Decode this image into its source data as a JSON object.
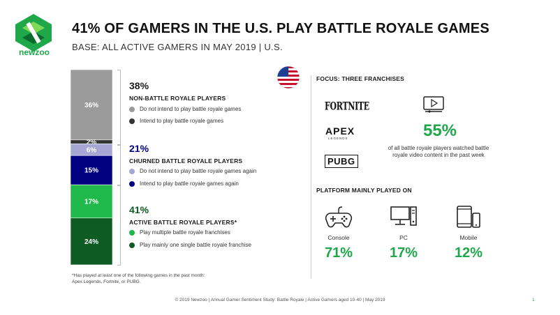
{
  "brand": {
    "name": "newzoo",
    "color": "#1fa84a"
  },
  "title": "41% OF GAMERS IN THE U.S. PLAY BATTLE ROYALE GAMES",
  "subtitle": "BASE: ALL ACTIVE GAMERS IN MAY 2019 | U.S.",
  "chart_data": {
    "type": "bar",
    "stacked": true,
    "unit": "%",
    "segments": [
      {
        "label": "36%",
        "value": 36,
        "color": "#9b9b9b",
        "label_color": "#ffffff"
      },
      {
        "label": "2%",
        "value": 2,
        "color": "#333333",
        "label_color": "#ffffff"
      },
      {
        "label": "6%",
        "value": 6,
        "color": "#a6a6d4",
        "label_color": "#ffffff"
      },
      {
        "label": "15%",
        "value": 15,
        "color": "#000080",
        "label_color": "#ffffff"
      },
      {
        "label": "17%",
        "value": 17,
        "color": "#1fb84a",
        "label_color": "#ffffff"
      },
      {
        "label": "24%",
        "value": 24,
        "color": "#0e5c24",
        "label_color": "#ffffff"
      }
    ]
  },
  "groups": [
    {
      "pct": "38%",
      "title": "NON-BATTLE ROYALE PLAYERS",
      "pct_color": "#1a1a1a",
      "legend": [
        {
          "label": "Do not intend to play battle royale games",
          "color": "#9b9b9b"
        },
        {
          "label": "Intend to play battle royale games",
          "color": "#333333"
        }
      ]
    },
    {
      "pct": "21%",
      "title": "CHURNED BATTLE ROYALE PLAYERS",
      "pct_color": "#000080",
      "legend": [
        {
          "label": "Do not intend to play battle royale games again",
          "color": "#a6a6d4"
        },
        {
          "label": "Intend to play battle royale games again",
          "color": "#000080"
        }
      ]
    },
    {
      "pct": "41%",
      "title": "ACTIVE BATTLE ROYALE PLAYERS*",
      "pct_color": "#0e5c24",
      "legend": [
        {
          "label": "Play multiple battle royale franchises",
          "color": "#1fb84a"
        },
        {
          "label": "Play mainly one single battle royale franchise",
          "color": "#0e5c24"
        }
      ]
    }
  ],
  "focus": {
    "title": "FOCUS: THREE FRANCHISES",
    "franchises": [
      "FORTNITE",
      "APEX",
      "LEGENDS",
      "PUBG"
    ],
    "flag_icon": "us-flag-icon",
    "video_icon": "video-screen-icon",
    "stat_value": "55%",
    "stat_desc": "of all battle royale players watched battle royale video content in the past week"
  },
  "platform": {
    "title": "PLATFORM MAINLY PLAYED ON",
    "items": [
      {
        "label": "Console",
        "value": "71%",
        "icon": "gamepad-icon"
      },
      {
        "label": "PC",
        "value": "17%",
        "icon": "desktop-pc-icon"
      },
      {
        "label": "Mobile",
        "value": "12%",
        "icon": "mobile-devices-icon"
      }
    ]
  },
  "footnote": "*Has played at least one of the following games in the past month: Apex Legends, Fortnite, or PUBG.",
  "footer": "© 2019 Newzoo | Annual Gamer Sentiment Study: Battle Royale | Active Gamers aged 10-40 | May 2019",
  "page_number": "1"
}
